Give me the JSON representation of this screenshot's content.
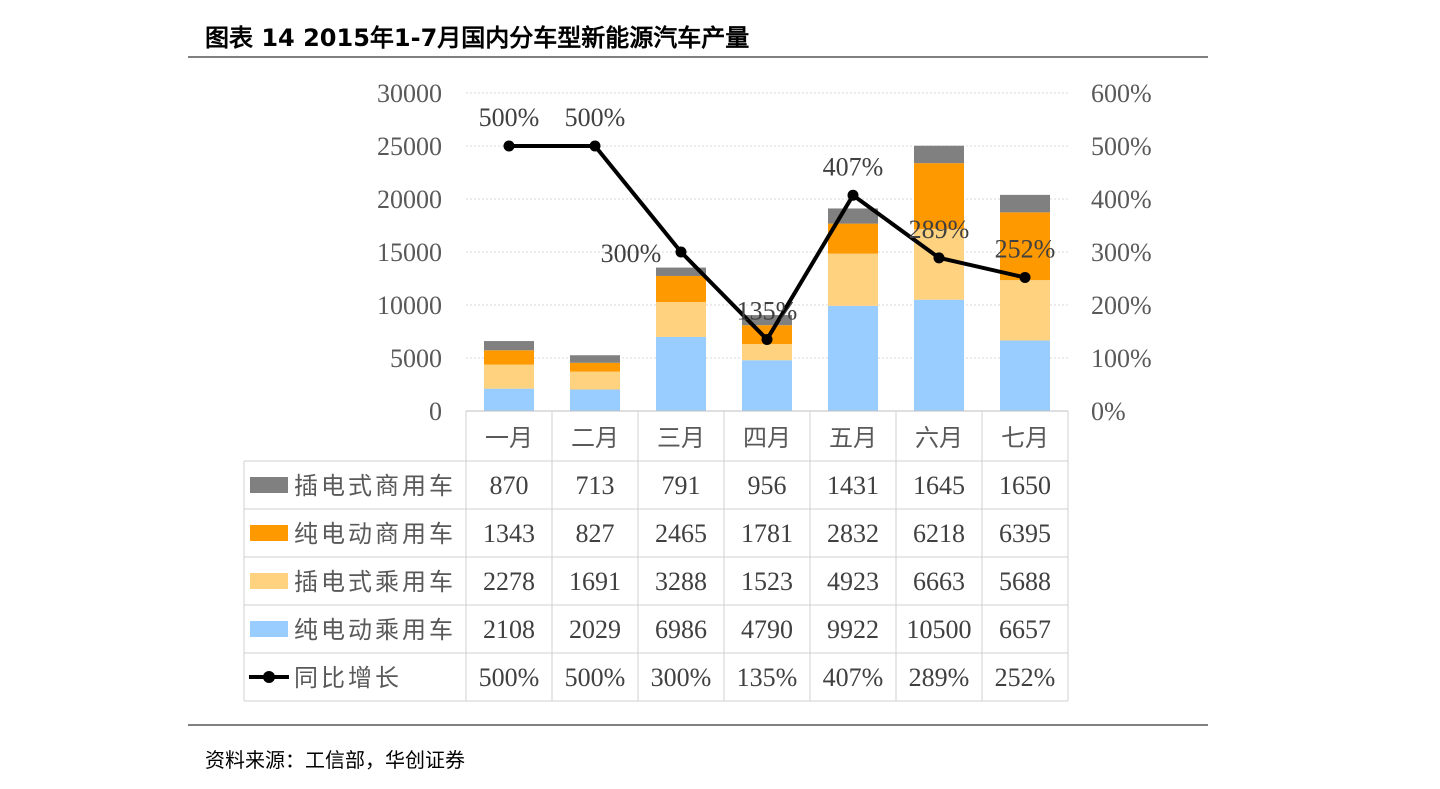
{
  "page": {
    "title": "图表 14  2015年1-7月国内分车型新能源汽车产量",
    "source": "资料来源：工信部，华创证券"
  },
  "chart_data": {
    "type": "bar",
    "stacked": true,
    "categories": [
      "一月",
      "二月",
      "三月",
      "四月",
      "五月",
      "六月",
      "七月"
    ],
    "series": [
      {
        "name": "纯电动乘用车",
        "type": "bar",
        "color": "#99ccff",
        "values": [
          2108,
          2029,
          6986,
          4790,
          9922,
          10500,
          6657
        ]
      },
      {
        "name": "插电式乘用车",
        "type": "bar",
        "color": "#ffd280",
        "values": [
          2278,
          1691,
          3288,
          1523,
          4923,
          6663,
          5688
        ]
      },
      {
        "name": "纯电动商用车",
        "type": "bar",
        "color": "#ff9900",
        "values": [
          1343,
          827,
          2465,
          1781,
          2832,
          6218,
          6395
        ]
      },
      {
        "name": "插电式商用车",
        "type": "bar",
        "color": "#808080",
        "values": [
          870,
          713,
          791,
          956,
          1431,
          1645,
          1650
        ]
      },
      {
        "name": "同比增长",
        "type": "line",
        "axis": "right",
        "color": "#000000",
        "values": [
          500,
          500,
          300,
          135,
          407,
          289,
          252
        ],
        "labels": [
          "500%",
          "500%",
          "300%",
          "135%",
          "407%",
          "289%",
          "252%"
        ]
      }
    ],
    "table_order": [
      "插电式商用车",
      "纯电动商用车",
      "插电式乘用车",
      "纯电动乘用车",
      "同比增长"
    ],
    "y_left": {
      "ylim": [
        0,
        30000
      ],
      "ticks": [
        "0",
        "5000",
        "10000",
        "15000",
        "20000",
        "25000",
        "30000"
      ]
    },
    "y_right": {
      "ylim": [
        0,
        600
      ],
      "ticks": [
        "0%",
        "100%",
        "200%",
        "300%",
        "400%",
        "500%",
        "600%"
      ]
    },
    "grid": true,
    "legend": "data-table"
  }
}
